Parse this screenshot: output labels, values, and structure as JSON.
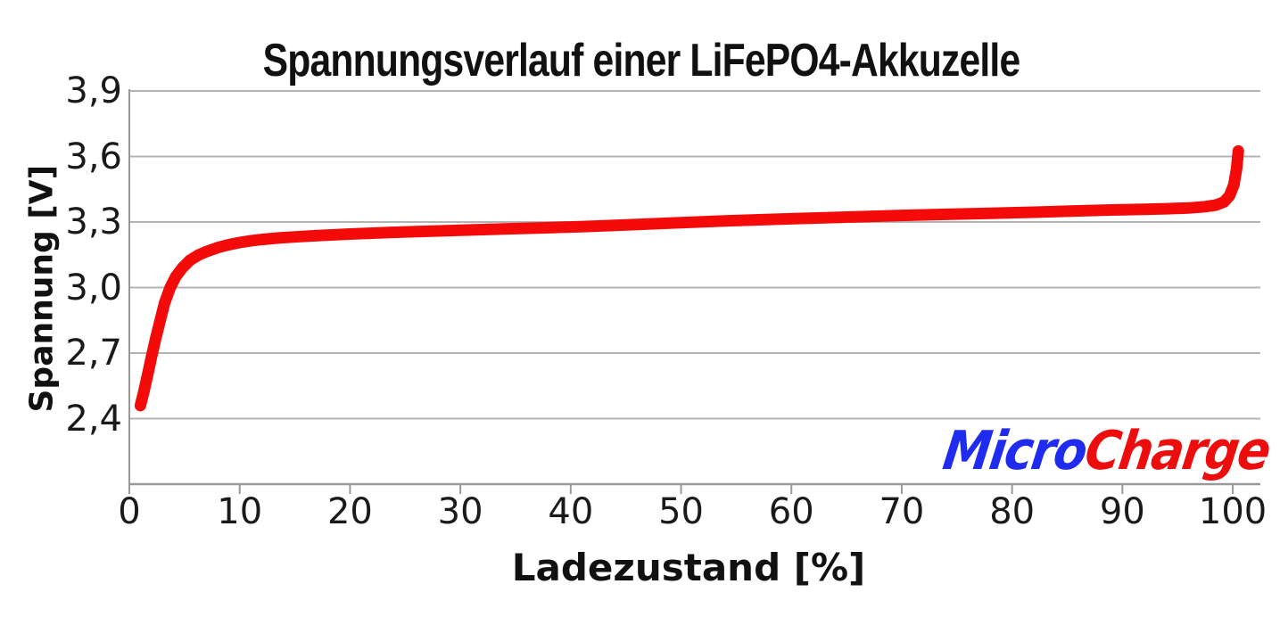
{
  "chart_data": {
    "type": "line",
    "title": "Spannungsverlauf einer LiFePO4-Akkuzelle",
    "xlabel": "Ladezustand [%]",
    "ylabel": "Spannung [V]",
    "xlim": [
      0,
      102.5
    ],
    "ylim": [
      2.1,
      3.9
    ],
    "grid": "horizontal-only",
    "x_ticks": [
      0,
      10,
      20,
      30,
      40,
      50,
      60,
      70,
      80,
      90,
      100
    ],
    "y_ticks": [
      {
        "v": 3.9,
        "label": "3,9"
      },
      {
        "v": 3.6,
        "label": "3,6"
      },
      {
        "v": 3.3,
        "label": "3,3"
      },
      {
        "v": 3.0,
        "label": "3,0"
      },
      {
        "v": 2.7,
        "label": "2,7"
      },
      {
        "v": 2.4,
        "label": "2,4"
      }
    ],
    "line_color": "#f50a0a",
    "line_width": 13,
    "grid_color": "#b3b3b3",
    "axis_color": "#999999",
    "series": [
      {
        "points": [
          [
            1.0,
            2.46
          ],
          [
            1.3,
            2.52
          ],
          [
            1.7,
            2.61
          ],
          [
            2.0,
            2.68
          ],
          [
            2.4,
            2.77
          ],
          [
            2.8,
            2.85
          ],
          [
            3.2,
            2.93
          ],
          [
            3.7,
            3.0
          ],
          [
            4.2,
            3.05
          ],
          [
            4.8,
            3.09
          ],
          [
            5.5,
            3.125
          ],
          [
            6.3,
            3.15
          ],
          [
            7.0,
            3.165
          ],
          [
            8.0,
            3.183
          ],
          [
            9.0,
            3.196
          ],
          [
            10,
            3.206
          ],
          [
            11,
            3.214
          ],
          [
            12,
            3.22
          ],
          [
            13.5,
            3.227
          ],
          [
            15,
            3.232
          ],
          [
            17,
            3.238
          ],
          [
            20,
            3.245
          ],
          [
            23,
            3.251
          ],
          [
            26,
            3.256
          ],
          [
            30,
            3.262
          ],
          [
            34,
            3.268
          ],
          [
            38,
            3.274
          ],
          [
            42,
            3.281
          ],
          [
            46,
            3.289
          ],
          [
            50,
            3.297
          ],
          [
            54,
            3.305
          ],
          [
            58,
            3.312
          ],
          [
            62,
            3.318
          ],
          [
            66,
            3.324
          ],
          [
            70,
            3.33
          ],
          [
            74,
            3.335
          ],
          [
            78,
            3.34
          ],
          [
            82,
            3.345
          ],
          [
            86,
            3.351
          ],
          [
            89,
            3.355
          ],
          [
            92,
            3.358
          ],
          [
            94,
            3.361
          ],
          [
            96,
            3.364
          ],
          [
            97.5,
            3.37
          ],
          [
            98.5,
            3.378
          ],
          [
            99.2,
            3.392
          ],
          [
            99.7,
            3.42
          ],
          [
            100.1,
            3.47
          ],
          [
            100.35,
            3.545
          ],
          [
            100.5,
            3.625
          ]
        ]
      }
    ]
  },
  "logo": {
    "part1": "Micro",
    "part2": "Charge",
    "color1": "#1f2bef",
    "color2": "#ee0d0d"
  }
}
